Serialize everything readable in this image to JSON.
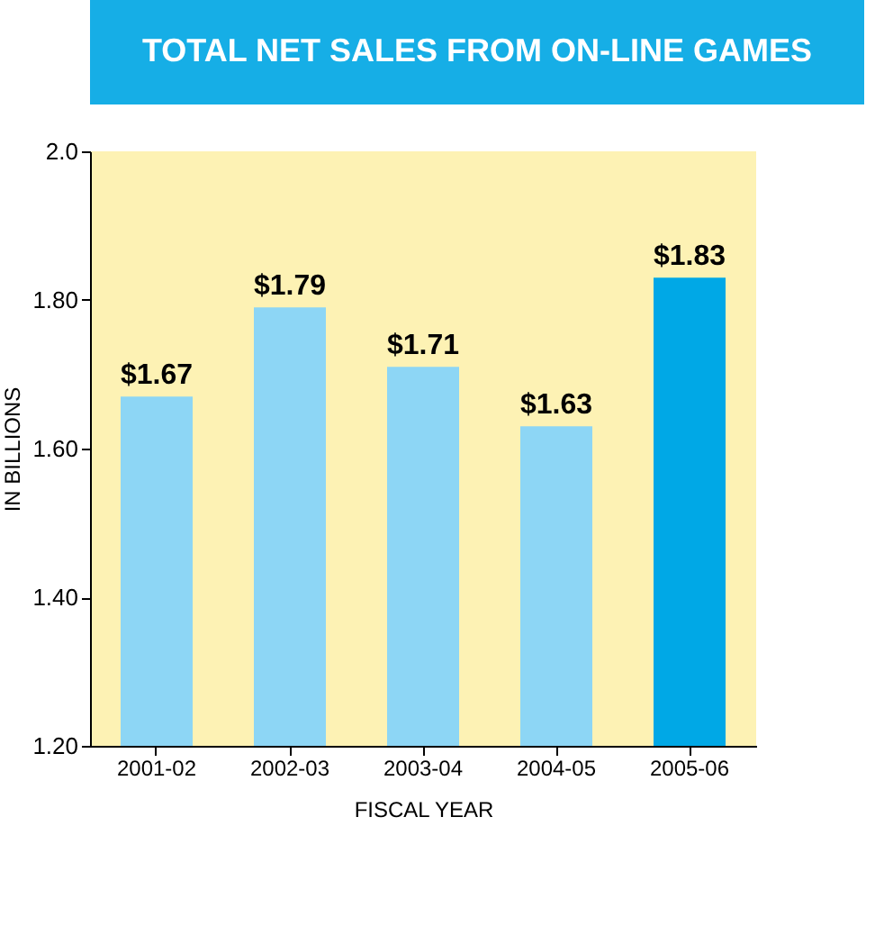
{
  "chart_data": {
    "type": "bar",
    "title": "TOTAL NET SALES FROM ON-LINE GAMES",
    "xlabel": "FISCAL YEAR",
    "ylabel": "IN BILLIONS",
    "categories": [
      "2001-02",
      "2002-03",
      "2003-04",
      "2004-05",
      "2005-06"
    ],
    "values": [
      1.67,
      1.79,
      1.71,
      1.63,
      1.83
    ],
    "value_labels": [
      "$1.67",
      "$1.79",
      "$1.71",
      "$1.63",
      "$1.83"
    ],
    "colors": [
      "#8dd6f5",
      "#8dd6f5",
      "#8dd6f5",
      "#8dd6f5",
      "#00a8e6"
    ],
    "ylim": [
      1.2,
      2.0
    ],
    "yticks": [
      {
        "value": 1.2,
        "label": "1.20"
      },
      {
        "value": 1.4,
        "label": "1.40"
      },
      {
        "value": 1.6,
        "label": "1.60"
      },
      {
        "value": 1.8,
        "label": "1.80"
      },
      {
        "value": 2.0,
        "label": "2.0"
      }
    ],
    "grid": false
  }
}
